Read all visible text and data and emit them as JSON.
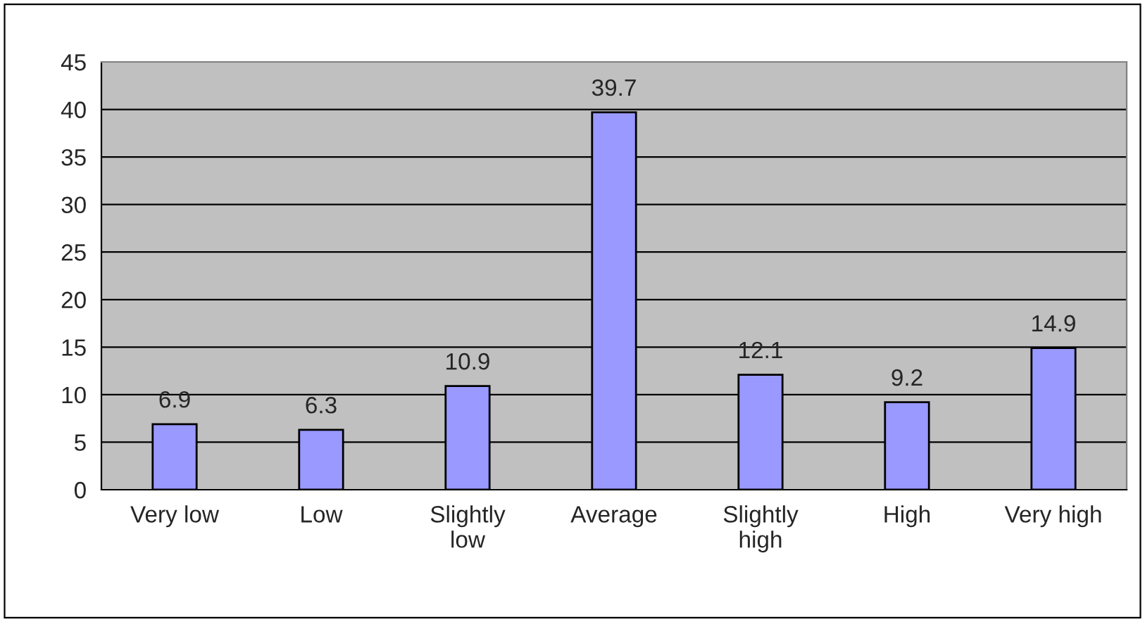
{
  "chart_data": {
    "type": "bar",
    "categories": [
      "Very low",
      "Low",
      "Slightly\nlow",
      "Average",
      "Slightly\nhigh",
      "High",
      "Very high"
    ],
    "values": [
      6.9,
      6.3,
      10.9,
      39.7,
      12.1,
      9.2,
      14.9
    ],
    "color": "#9999ff",
    "ylim": [
      0,
      45
    ],
    "yticks": [
      0,
      5,
      10,
      15,
      20,
      25,
      30,
      35,
      40,
      45
    ],
    "grid": "y",
    "data_labels": true,
    "legend": false
  }
}
